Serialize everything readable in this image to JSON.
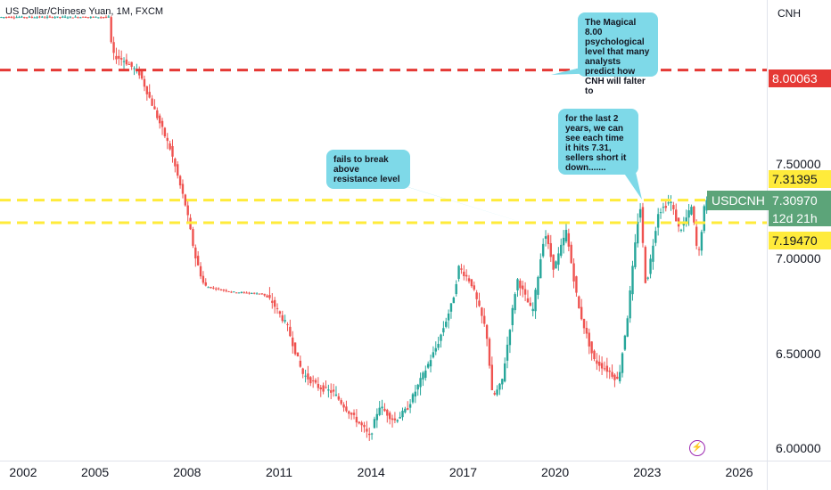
{
  "header": {
    "title": "US Dollar/Chinese Yuan, 1M, FXCM",
    "currency": "CNH"
  },
  "price_tags": {
    "level_800": "8.00063",
    "level_731": "7.31395",
    "symbol": "USDCNH",
    "current": "7.30970",
    "countdown": "12d 21h",
    "level_719": "7.19470"
  },
  "callouts": {
    "magical": "The Magical 8.00 psychological level that many analysts predict how CNH will falter to",
    "resistance": "fails to break above resistance level",
    "sellers": "for the last 2 years, we can see each time it hits 7.31, sellers short it down......."
  },
  "colors": {
    "up": "#26a69a",
    "down": "#ef5350",
    "red_line": "#e53935",
    "yellow_line": "#ffeb3b",
    "callout": "#7ed9e8"
  },
  "icons": {
    "alert": "lightning-icon"
  },
  "chart_data": {
    "type": "candlestick",
    "x_tick_labels": [
      "2002",
      "2005",
      "2008",
      "2011",
      "2014",
      "2017",
      "2020",
      "2023",
      "2026"
    ],
    "y_tick_labels": [
      "6.00000",
      "6.50000",
      "7.00000",
      "7.50000"
    ],
    "ylim": [
      5.94,
      8.37
    ],
    "xlim": [
      2001.9,
      2026.9
    ],
    "horizontal_levels": [
      {
        "value": 8.00063,
        "color": "#e53935",
        "style": "dashed"
      },
      {
        "value": 7.31395,
        "color": "#ffeb3b",
        "style": "dashed"
      },
      {
        "value": 7.1947,
        "color": "#ffeb3b",
        "style": "dashed"
      }
    ],
    "price_path": [
      [
        2001.9,
        8.28
      ],
      [
        2005.5,
        8.28
      ],
      [
        2005.6,
        8.08
      ],
      [
        2006.0,
        8.05
      ],
      [
        2006.5,
        7.98
      ],
      [
        2007.0,
        7.78
      ],
      [
        2007.5,
        7.58
      ],
      [
        2008.0,
        7.28
      ],
      [
        2008.3,
        7.02
      ],
      [
        2008.6,
        6.86
      ],
      [
        2009.5,
        6.83
      ],
      [
        2010.5,
        6.82
      ],
      [
        2010.8,
        6.78
      ],
      [
        2011.3,
        6.65
      ],
      [
        2011.8,
        6.4
      ],
      [
        2012.3,
        6.33
      ],
      [
        2012.8,
        6.3
      ],
      [
        2013.3,
        6.2
      ],
      [
        2013.8,
        6.11
      ],
      [
        2014.0,
        6.06
      ],
      [
        2014.3,
        6.23
      ],
      [
        2014.8,
        6.15
      ],
      [
        2015.2,
        6.21
      ],
      [
        2015.7,
        6.38
      ],
      [
        2016.2,
        6.55
      ],
      [
        2016.7,
        6.78
      ],
      [
        2016.9,
        6.96
      ],
      [
        2017.3,
        6.88
      ],
      [
        2017.8,
        6.62
      ],
      [
        2018.0,
        6.27
      ],
      [
        2018.3,
        6.35
      ],
      [
        2018.8,
        6.9
      ],
      [
        2019.3,
        6.72
      ],
      [
        2019.7,
        7.15
      ],
      [
        2020.0,
        6.95
      ],
      [
        2020.4,
        7.15
      ],
      [
        2020.8,
        6.75
      ],
      [
        2021.3,
        6.47
      ],
      [
        2021.8,
        6.41
      ],
      [
        2022.1,
        6.36
      ],
      [
        2022.4,
        6.7
      ],
      [
        2022.8,
        7.31
      ],
      [
        2023.0,
        6.85
      ],
      [
        2023.4,
        7.25
      ],
      [
        2023.8,
        7.31
      ],
      [
        2024.1,
        7.15
      ],
      [
        2024.5,
        7.28
      ],
      [
        2024.7,
        7.0
      ],
      [
        2024.9,
        7.27
      ],
      [
        2025.0,
        7.31
      ]
    ]
  }
}
